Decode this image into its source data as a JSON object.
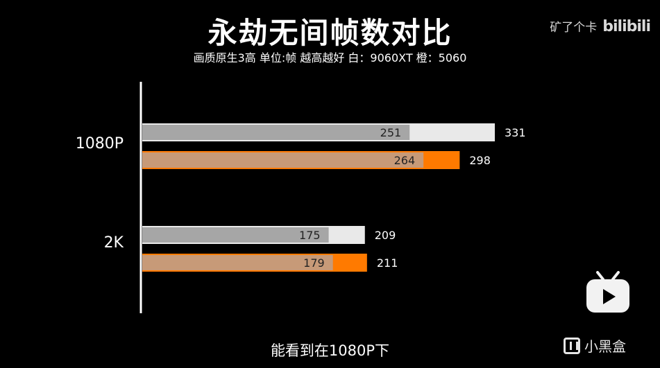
{
  "title": "永劫无间帧数对比",
  "subtitle": "画质原生3高 单位:帧 越高越好 白：9060XT 橙：5060",
  "watermark": {
    "channel": "矿了个卡",
    "brand": "bilibili"
  },
  "caption": "能看到在1080P下",
  "corner_brand": "小黑盒",
  "colors": {
    "white_bar": "#e9e9e9",
    "white_inner": "#a6a6a6",
    "orange_bar": "#ff7a00",
    "orange_inner": "#c79a78",
    "axis": "#ffffff"
  },
  "chart_data": {
    "type": "bar",
    "orientation": "horizontal",
    "categories": [
      "1080P",
      "2K"
    ],
    "series": [
      {
        "name": "9060XT",
        "color": "white",
        "values": [
          331,
          209
        ],
        "inner_values": [
          251,
          175
        ]
      },
      {
        "name": "5060",
        "color": "orange",
        "values": [
          298,
          211
        ],
        "inner_values": [
          264,
          179
        ]
      }
    ],
    "xlim": [
      0,
      331
    ],
    "grid": false,
    "legend": "subtitle"
  }
}
